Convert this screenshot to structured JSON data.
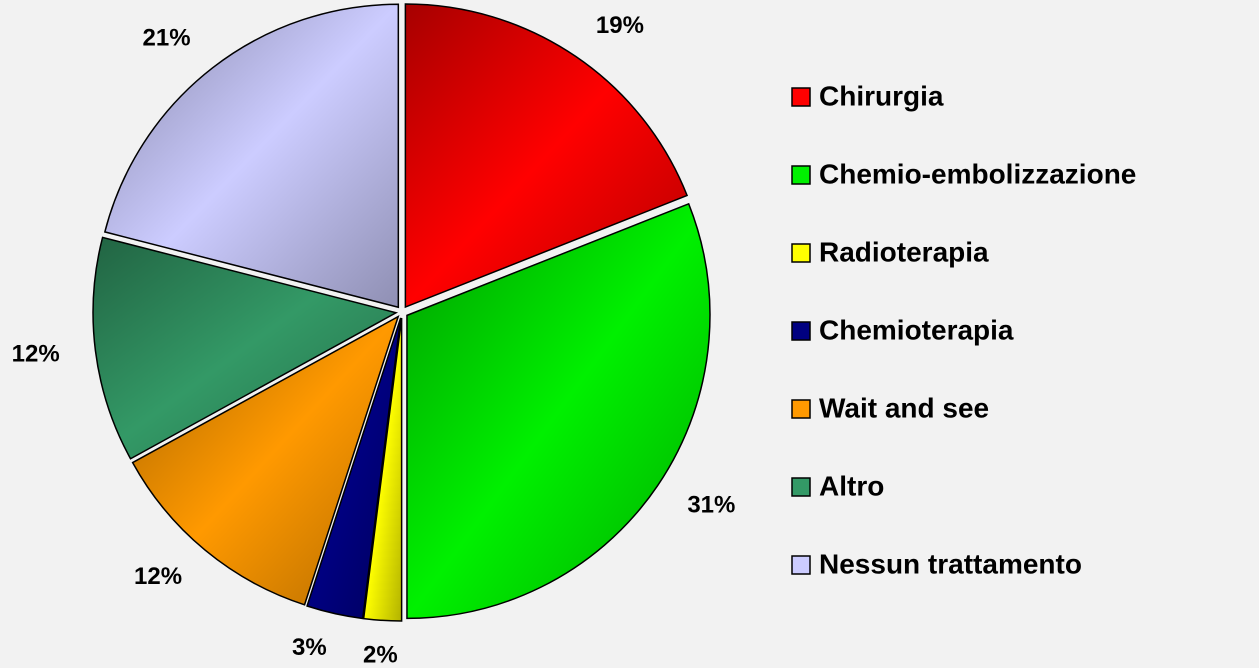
{
  "chart_data": {
    "type": "pie",
    "categories": [
      "Chirurgia",
      "Chemio-embolizzazione",
      "Radioterapia",
      "Chemioterapia",
      "Wait and see",
      "Altro",
      "Nessun trattamento"
    ],
    "values": [
      19,
      31,
      2,
      3,
      12,
      12,
      21
    ],
    "value_labels": [
      "19%",
      "31%",
      "2%",
      "3%",
      "12%",
      "12%",
      "21%"
    ],
    "colors": [
      "#ff0000",
      "#00f000",
      "#ffff00",
      "#000080",
      "#ff9900",
      "#339966",
      "#ccccff"
    ],
    "legend": "right"
  }
}
